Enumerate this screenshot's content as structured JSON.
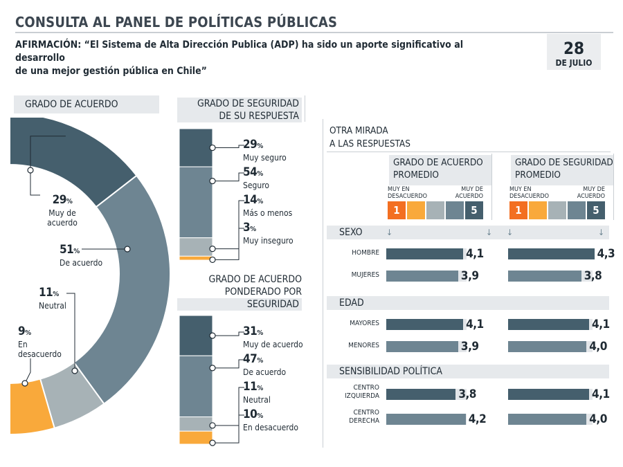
{
  "header": {
    "title": "CONSULTA AL PANEL DE POLÍTICAS PÚBLICAS",
    "statement_line1": "AFIRMACIÓN: “El Sistema de Alta Dirección Publica (ADP) ha sido un aporte significativo al desarrollo",
    "statement_line2": "de una mejor gestión pública en Chile”",
    "date_day": "28",
    "date_month": "DE JULIO"
  },
  "colors": {
    "dark": "#455f6d",
    "mid": "#6e8592",
    "light": "#a7b2b6",
    "orange": "#f9a93b",
    "orange_dark": "#f36f21",
    "panel": "#e6e9ec"
  },
  "chart_data": [
    {
      "type": "pie",
      "title": "GRADO DE ACUERDO",
      "unit": "%",
      "slices": [
        {
          "name": "Muy de acuerdo",
          "label_name": "Muy de\nacuerdo",
          "value": 29
        },
        {
          "name": "De acuerdo",
          "label_name": "De acuerdo",
          "value": 51
        },
        {
          "name": "Neutral",
          "label_name": "Neutral",
          "value": 11
        },
        {
          "name": "En desacuerdo",
          "label_name": "En\ndesacuerdo",
          "value": 9
        }
      ]
    },
    {
      "type": "bar",
      "stacked": true,
      "title_line1": "GRADO DE SEGURIDAD",
      "title_line2": "DE SU RESPUESTA",
      "unit": "%",
      "categories": [
        "Muy seguro",
        "Seguro",
        "Más o menos",
        "Muy inseguro"
      ],
      "values": [
        29,
        54,
        14,
        3
      ]
    },
    {
      "type": "bar",
      "stacked": true,
      "title_line1": "GRADO DE ACUERDO",
      "title_line2": "PONDERADO POR",
      "title_line3": "SEGURIDAD",
      "unit": "%",
      "categories": [
        "Muy de acuerdo",
        "De acuerdo",
        "Neutral",
        "En desacuerdo"
      ],
      "values": [
        31,
        47,
        11,
        10
      ]
    },
    {
      "type": "bar",
      "orientation": "horizontal",
      "title_line1": "OTRA MIRADA",
      "title_line2": "A LAS RESPUESTAS",
      "scale": {
        "min": 1,
        "max": 5,
        "min_label_line1": "MUY EN",
        "min_label_line2": "DESACUERDO",
        "max_label_line1": "MUY DE",
        "max_label_line2": "ACUERDO",
        "min_text": "1",
        "max_text": "5"
      },
      "series": [
        {
          "name_line1": "GRADO DE ACUERDO",
          "name_line2": "PROMEDIO"
        },
        {
          "name_line1": "GRADO DE SEGURIDAD",
          "name_line2": "PROMEDIO"
        }
      ],
      "groups": [
        {
          "name": "SEXO",
          "rows": [
            {
              "label": "HOMBRE",
              "values": [
                4.1,
                4.3
              ],
              "labels": [
                "4,1",
                "4,3"
              ]
            },
            {
              "label": "MUJERES",
              "values": [
                3.9,
                3.8
              ],
              "labels": [
                "3,9",
                "3,8"
              ]
            }
          ]
        },
        {
          "name": "EDAD",
          "rows": [
            {
              "label": "MAYORES",
              "values": [
                4.1,
                4.1
              ],
              "labels": [
                "4,1",
                "4,1"
              ]
            },
            {
              "label": "MENORES",
              "values": [
                3.9,
                4.0
              ],
              "labels": [
                "3,9",
                "4,0"
              ]
            }
          ]
        },
        {
          "name": "SENSIBILIDAD POLÍTICA",
          "rows": [
            {
              "label": "CENTRO\nIZQUIERDA",
              "values": [
                3.8,
                4.1
              ],
              "labels": [
                "3,8",
                "4,1"
              ]
            },
            {
              "label": "CENTRO\nDERECHA",
              "values": [
                4.2,
                4.0
              ],
              "labels": [
                "4,2",
                "4,0"
              ]
            }
          ]
        }
      ]
    }
  ]
}
